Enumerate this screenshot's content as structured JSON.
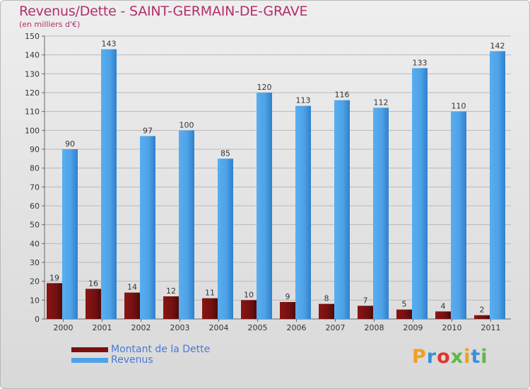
{
  "header": {
    "title": "Revenus/Dette - SAINT-GERMAIN-DE-GRAVE",
    "subtitle": "(en milliers d'€)"
  },
  "logo": {
    "text": "Proxiti"
  },
  "colors": {
    "title": "#b0306a",
    "dette": "#7a1010",
    "revenus": "#4da3e8",
    "legend_text": "#4a78d8"
  },
  "chart_data": {
    "type": "bar",
    "categories": [
      "2000",
      "2001",
      "2002",
      "2003",
      "2004",
      "2005",
      "2006",
      "2007",
      "2008",
      "2009",
      "2010",
      "2011"
    ],
    "series": [
      {
        "name": "Montant de la Dette",
        "values": [
          19,
          16,
          14,
          12,
          11,
          10,
          9,
          8,
          7,
          5,
          4,
          2
        ]
      },
      {
        "name": "Revenus",
        "values": [
          90,
          143,
          97,
          100,
          85,
          120,
          113,
          116,
          112,
          133,
          110,
          142
        ]
      }
    ],
    "ylim": [
      0,
      150
    ],
    "yticks": [
      0,
      10,
      20,
      30,
      40,
      50,
      60,
      70,
      80,
      90,
      100,
      110,
      120,
      130,
      140,
      150
    ],
    "grid": true,
    "legend": "bottom-left"
  }
}
